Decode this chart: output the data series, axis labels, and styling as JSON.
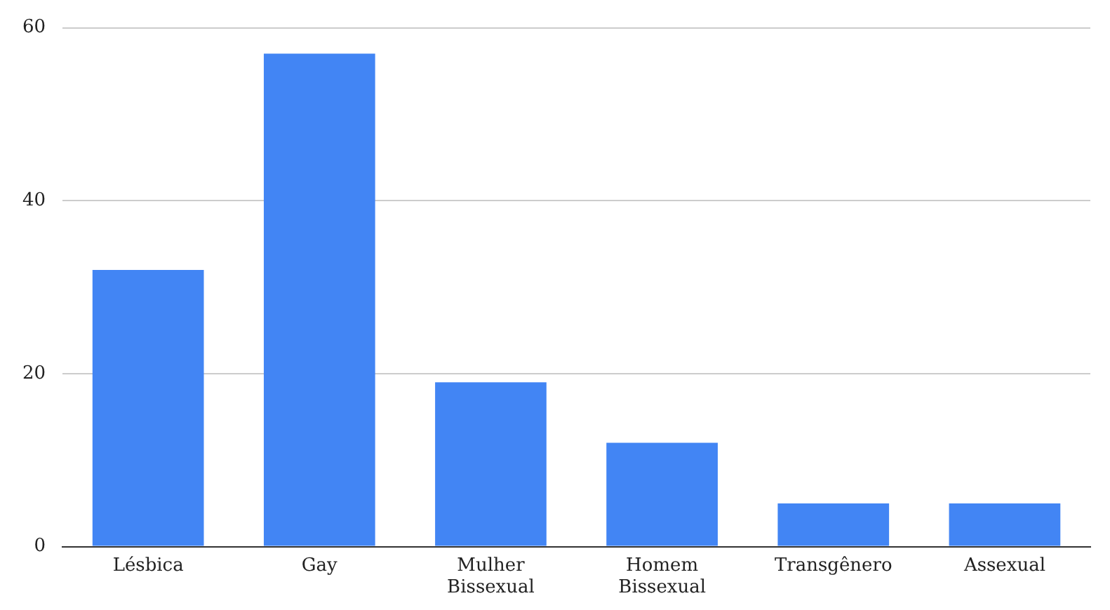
{
  "chart_data": {
    "type": "bar",
    "categories": [
      "Lésbica",
      "Gay",
      "Mulher Bissexual",
      "Homem Bissexual",
      "Transgênero",
      "Assexual"
    ],
    "values": [
      32,
      57,
      19,
      12,
      5,
      5
    ],
    "color": "#4285f4",
    "ylim": [
      0,
      60
    ],
    "yticks": [
      0,
      20,
      40,
      60
    ],
    "grid": "y",
    "legend": false
  }
}
